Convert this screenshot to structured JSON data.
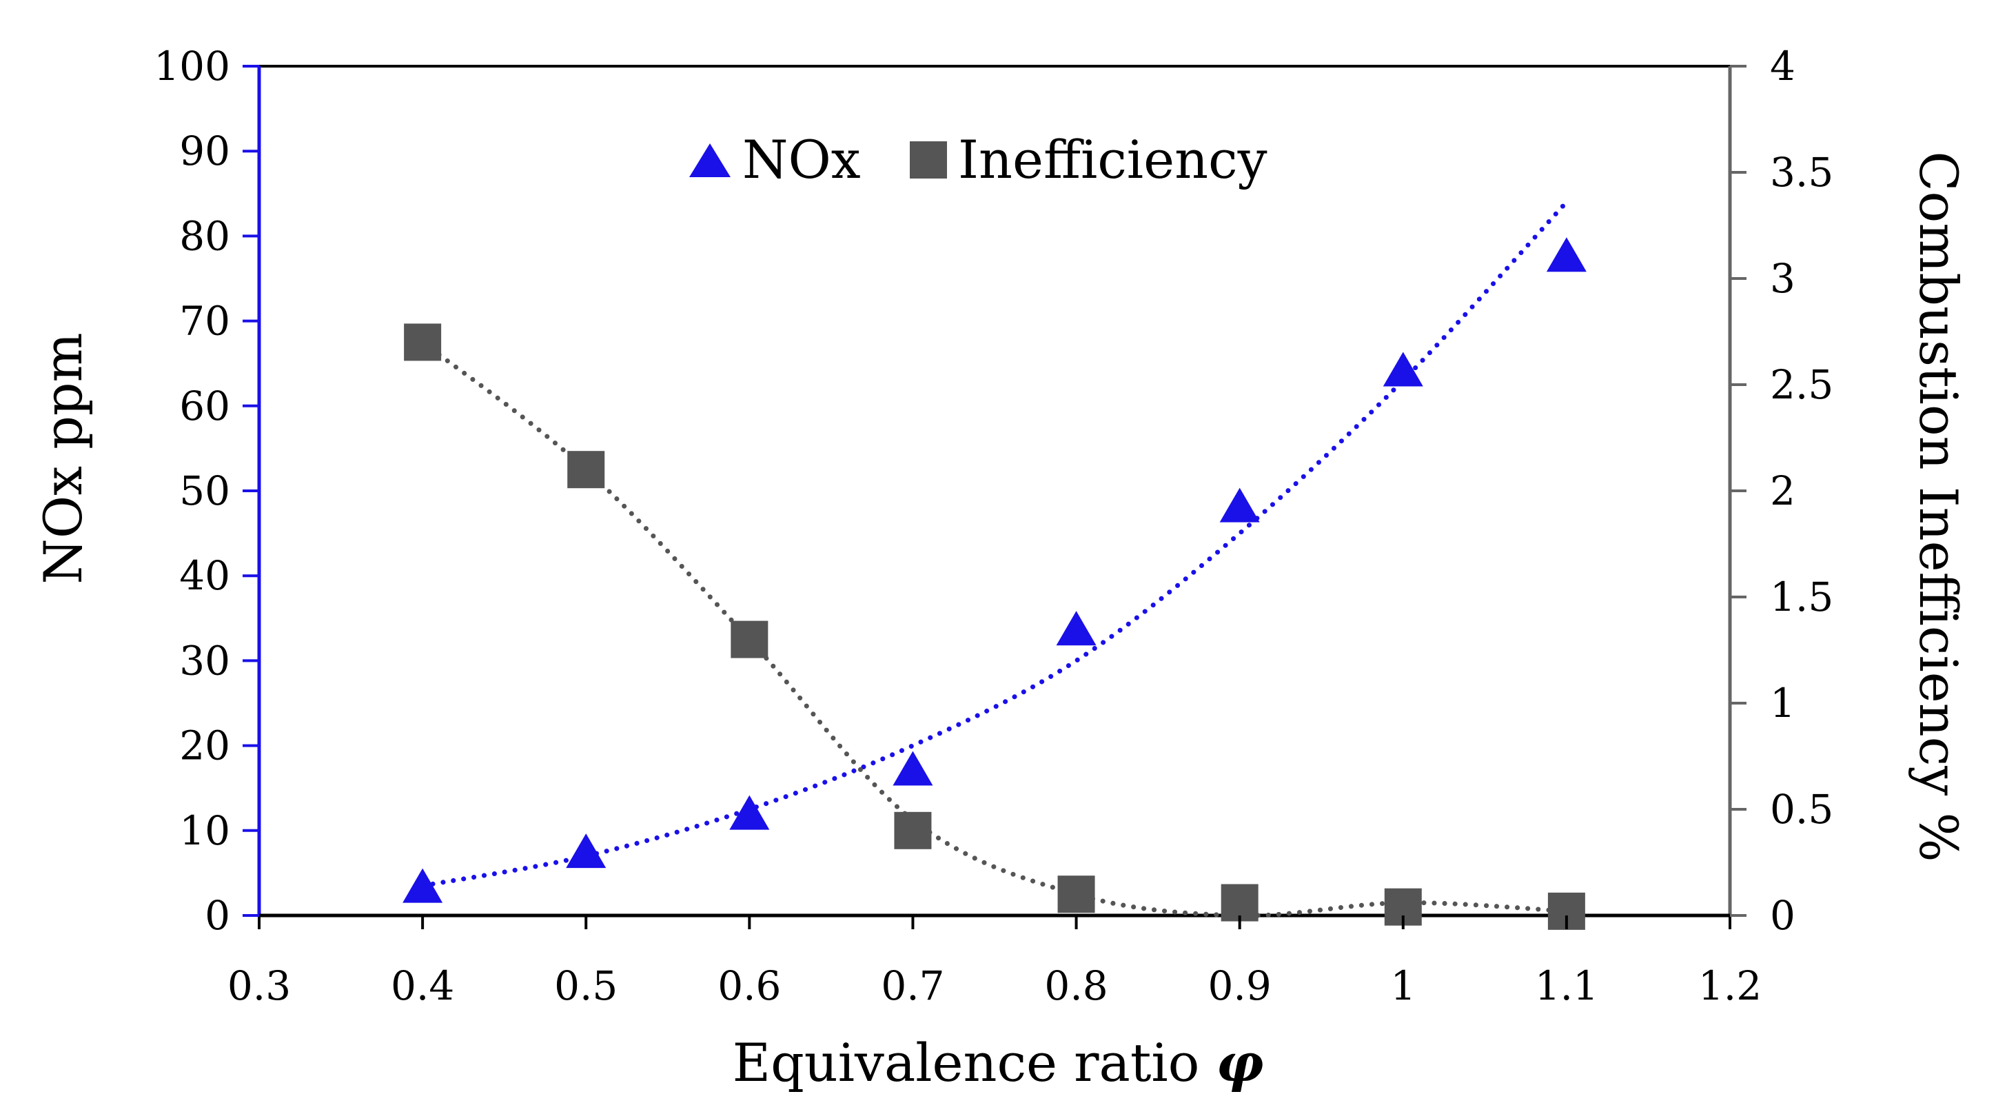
{
  "chart_data": {
    "type": "scatter",
    "title": "",
    "xlabel": "Equivalence ratio",
    "xlabel_symbol": "φ",
    "ylabel": "NOx ppm",
    "y2label": "Combustion Inefficiency %",
    "xlim": [
      0.3,
      1.2
    ],
    "ylim": [
      0,
      100
    ],
    "y2lim": [
      0,
      4
    ],
    "x_ticks": [
      "0.3",
      "0.4",
      "0.5",
      "0.6",
      "0.7",
      "0.8",
      "0.9",
      "1",
      "1.1",
      "1.2"
    ],
    "y_ticks": [
      "0",
      "10",
      "20",
      "30",
      "40",
      "50",
      "60",
      "70",
      "80",
      "90",
      "100"
    ],
    "y2_ticks": [
      "0",
      "0.5",
      "1",
      "1.5",
      "2",
      "2.5",
      "3",
      "3.5",
      "4"
    ],
    "legend_position": "top-center",
    "series": [
      {
        "name": "NOx",
        "axis": "left",
        "marker": "triangle",
        "color": "#1a10e8",
        "x": [
          0.4,
          0.5,
          0.6,
          0.7,
          0.8,
          0.9,
          1.0,
          1.1
        ],
        "values": [
          3.2,
          7.3,
          11.8,
          17.0,
          33.5,
          48.0,
          64.0,
          77.5
        ],
        "trendline": {
          "style": "dotted",
          "x": [
            0.4,
            0.5,
            0.6,
            0.7,
            0.8,
            0.9,
            1.0,
            1.1
          ],
          "values": [
            3.5,
            7.0,
            12.5,
            20.0,
            30.0,
            45.0,
            63.0,
            84.0
          ]
        }
      },
      {
        "name": "Inefficiency",
        "axis": "right",
        "marker": "square",
        "color": "#555555",
        "x": [
          0.4,
          0.5,
          0.6,
          0.7,
          0.8,
          0.9,
          1.0,
          1.1
        ],
        "values": [
          2.7,
          2.1,
          1.3,
          0.4,
          0.1,
          0.06,
          0.04,
          0.02
        ],
        "trendline": {
          "style": "dotted",
          "x": [
            0.4,
            0.5,
            0.6,
            0.7,
            0.8,
            0.9,
            1.0,
            1.1
          ],
          "values": [
            2.7,
            2.1,
            1.3,
            0.45,
            0.1,
            0.0,
            0.06,
            0.02
          ]
        }
      }
    ],
    "colors": {
      "left_axis": "#1a10e8",
      "right_axis": "#666666",
      "x_axis": "#000000"
    }
  }
}
